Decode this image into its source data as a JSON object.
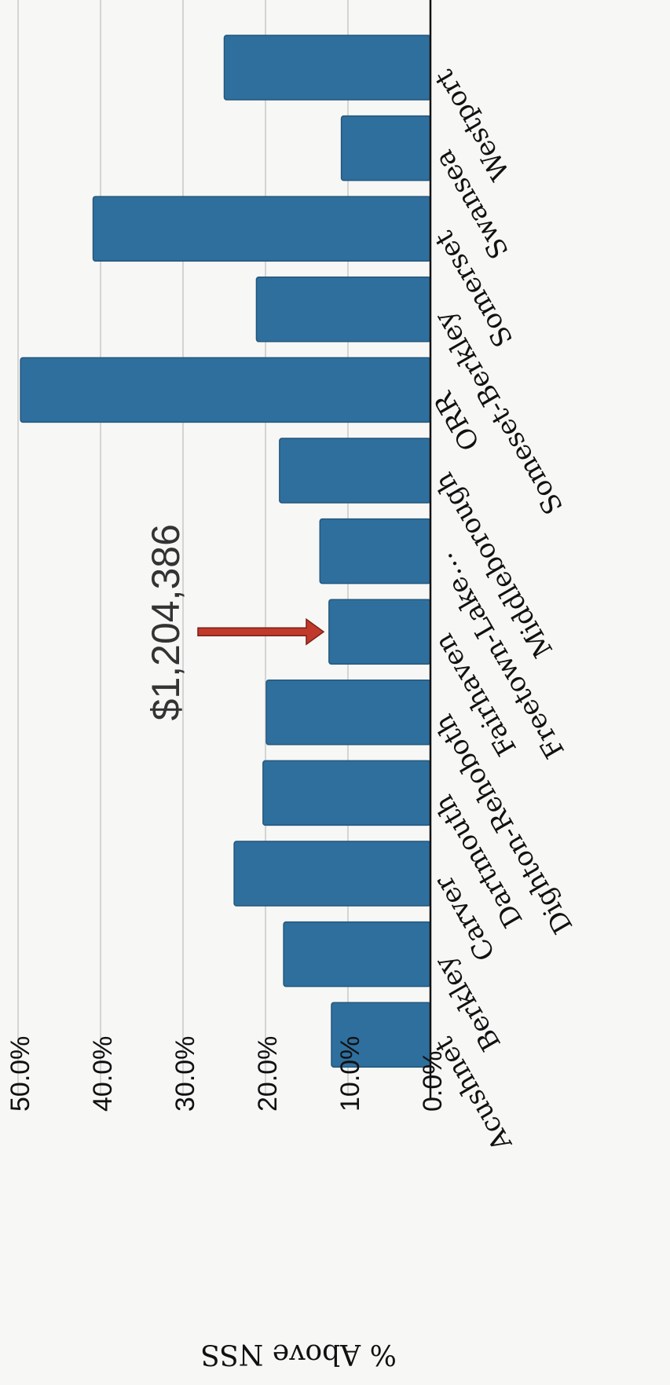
{
  "chart_data": {
    "type": "bar",
    "orientation": "rotated",
    "categories": [
      "Acushnet",
      "Berkley",
      "Carver",
      "Dartmouth",
      "Dighton-Rehoboth",
      "Fairhaven",
      "Freetown-Lake…",
      "Middleborough",
      "ORR",
      "Someset-Berkley",
      "Somerset",
      "Swansea",
      "Westport"
    ],
    "values": [
      12.0,
      17.8,
      23.8,
      20.3,
      19.9,
      12.3,
      13.4,
      18.3,
      49.7,
      21.1,
      40.9,
      10.8,
      25.0
    ],
    "ylabel": "% Above NSS",
    "ylim": [
      0,
      50
    ],
    "y_ticks": [
      "0.0%",
      "10.0%",
      "20.0%",
      "30.0%",
      "40.0%",
      "50.0%"
    ],
    "grid": true,
    "bar_color": "#2f6f9e",
    "annotation": {
      "text": "$1,204,386",
      "target_category": "Fairhaven",
      "arrow_color": "#c0392b"
    }
  }
}
